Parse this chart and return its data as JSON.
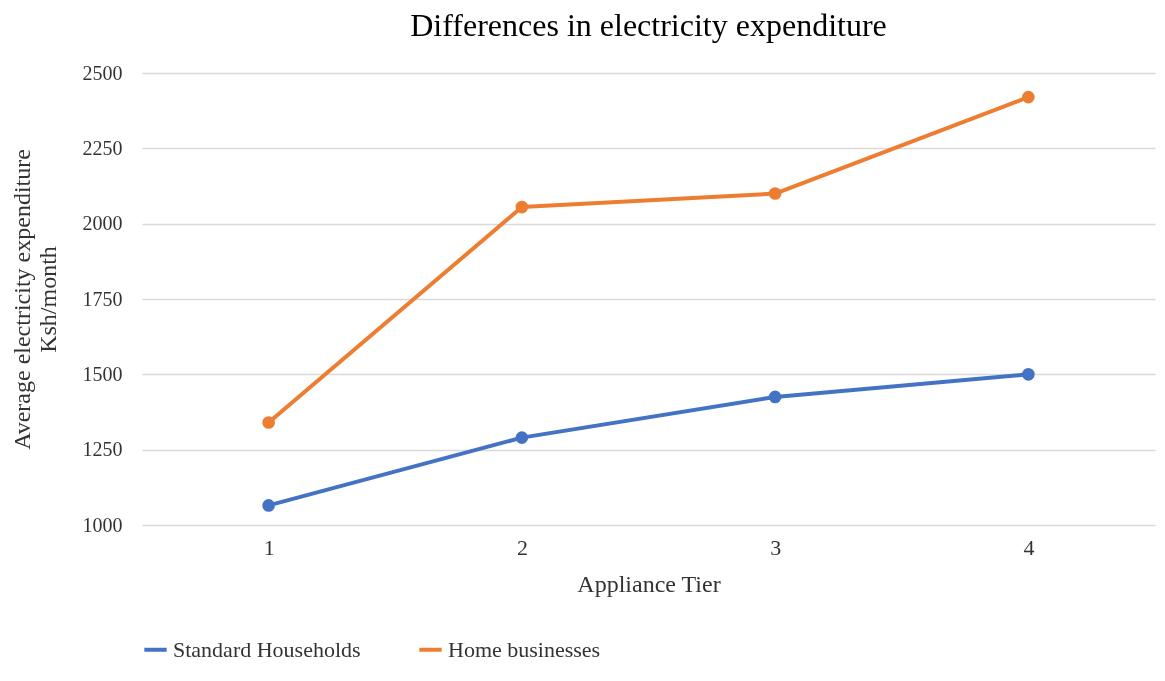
{
  "chart_data": {
    "type": "line",
    "title": "Differences in electricity expenditure",
    "xlabel": "Appliance Tier",
    "ylabel": "Average electricity expenditure\nKsh/month",
    "categories": [
      "1",
      "2",
      "3",
      "4"
    ],
    "series": [
      {
        "name": "Standard Households",
        "color": "#4472c4",
        "values": [
          1065,
          1290,
          1425,
          1500
        ]
      },
      {
        "name": "Home businesses",
        "color": "#ed7d31",
        "values": [
          1340,
          2055,
          2100,
          2420
        ]
      }
    ],
    "ylim": [
      1000,
      2500
    ],
    "yticks": [
      1000,
      1250,
      1500,
      1750,
      2000,
      2250,
      2500
    ],
    "grid": "y",
    "legend": "bottom",
    "marker": "circle",
    "line_style": "solid"
  }
}
